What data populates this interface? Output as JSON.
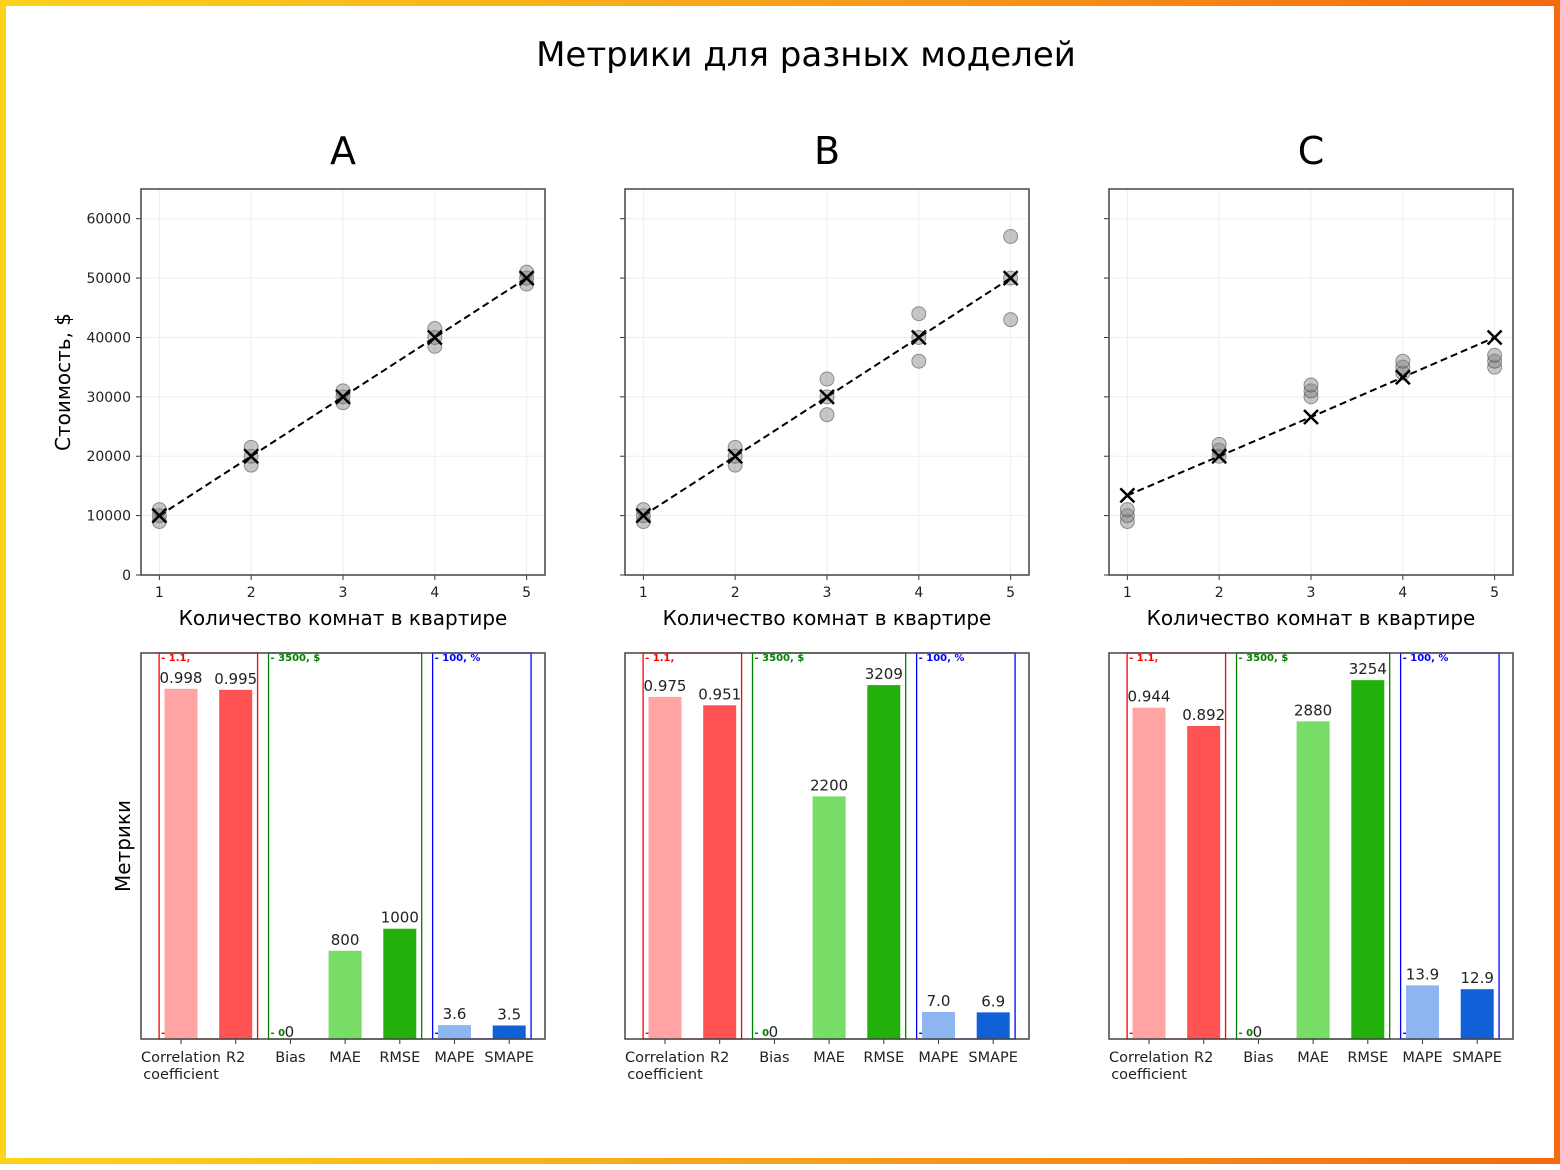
{
  "title": "Метрики для разных моделей",
  "scatter_ylabel": "Стоимость, $",
  "bars_ylabel": "Метрики",
  "xlabel": "Количество комнат в квартире",
  "colors": {
    "corr": "#ffa3a3",
    "r2": "#ff5252",
    "bias": "#b0e0b0",
    "mae": "#77dd66",
    "rmse": "#22b10a",
    "mape": "#8cb5f2",
    "smape": "#1060d8",
    "group_red": "#ff0000",
    "group_green": "#008000",
    "group_blue": "#0000ff"
  },
  "metric_groups": [
    {
      "name": "red",
      "max_label": "1.1,",
      "min_label": "0",
      "max": 1.1
    },
    {
      "name": "green",
      "max_label": "3500, $",
      "min_label": "0",
      "max": 3500
    },
    {
      "name": "blue",
      "max_label": "100, %",
      "min_label": "0",
      "max": 100
    }
  ],
  "chart_data": [
    {
      "type": "scatter",
      "panel": "A",
      "title": "A",
      "xlabel": "Количество комнат в квартире",
      "ylabel": "Стоимость, $",
      "xlim": [
        0.8,
        5.2
      ],
      "ylim": [
        0,
        65000
      ],
      "xticks": [
        1,
        2,
        3,
        4,
        5
      ],
      "yticks": [
        0,
        10000,
        20000,
        30000,
        40000,
        50000,
        60000
      ],
      "grid": true,
      "actual": [
        [
          1,
          9000
        ],
        [
          1,
          10000
        ],
        [
          1,
          11000
        ],
        [
          2,
          18500
        ],
        [
          2,
          20000
        ],
        [
          2,
          21500
        ],
        [
          3,
          29000
        ],
        [
          3,
          30000
        ],
        [
          3,
          31000
        ],
        [
          4,
          38500
        ],
        [
          4,
          40000
        ],
        [
          4,
          41500
        ],
        [
          5,
          49000
        ],
        [
          5,
          50000
        ],
        [
          5,
          51000
        ]
      ],
      "predicted": [
        [
          1,
          10000
        ],
        [
          2,
          20000
        ],
        [
          3,
          30000
        ],
        [
          4,
          40000
        ],
        [
          5,
          50000
        ]
      ]
    },
    {
      "type": "scatter",
      "panel": "B",
      "title": "B",
      "xlabel": "Количество комнат в квартире",
      "xlim": [
        0.8,
        5.2
      ],
      "ylim": [
        0,
        65000
      ],
      "xticks": [
        1,
        2,
        3,
        4,
        5
      ],
      "yticks": [
        0,
        10000,
        20000,
        30000,
        40000,
        50000,
        60000
      ],
      "grid": true,
      "actual": [
        [
          1,
          9000
        ],
        [
          1,
          10000
        ],
        [
          1,
          11000
        ],
        [
          2,
          18500
        ],
        [
          2,
          20000
        ],
        [
          2,
          21500
        ],
        [
          3,
          27000
        ],
        [
          3,
          30000
        ],
        [
          3,
          33000
        ],
        [
          4,
          36000
        ],
        [
          4,
          40000
        ],
        [
          4,
          44000
        ],
        [
          5,
          43000
        ],
        [
          5,
          50000
        ],
        [
          5,
          57000
        ]
      ],
      "predicted": [
        [
          1,
          10000
        ],
        [
          2,
          20000
        ],
        [
          3,
          30000
        ],
        [
          4,
          40000
        ],
        [
          5,
          50000
        ]
      ]
    },
    {
      "type": "scatter",
      "panel": "C",
      "title": "C",
      "xlabel": "Количество комнат в квартире",
      "xlim": [
        0.8,
        5.2
      ],
      "ylim": [
        0,
        65000
      ],
      "xticks": [
        1,
        2,
        3,
        4,
        5
      ],
      "yticks": [
        0,
        10000,
        20000,
        30000,
        40000,
        50000,
        60000
      ],
      "grid": true,
      "actual": [
        [
          1,
          9000
        ],
        [
          1,
          10000
        ],
        [
          1,
          11000
        ],
        [
          2,
          20000
        ],
        [
          2,
          21000
        ],
        [
          2,
          22000
        ],
        [
          3,
          30000
        ],
        [
          3,
          31000
        ],
        [
          3,
          32000
        ],
        [
          4,
          34000
        ],
        [
          4,
          35000
        ],
        [
          4,
          36000
        ],
        [
          5,
          35000
        ],
        [
          5,
          36000
        ],
        [
          5,
          37000
        ]
      ],
      "predicted": [
        [
          1,
          13400
        ],
        [
          2,
          20000
        ],
        [
          3,
          26600
        ],
        [
          4,
          33300
        ],
        [
          5,
          40000
        ]
      ]
    },
    {
      "type": "bar",
      "panel": "A",
      "ylabel": "Метрики",
      "categories": [
        "Correlation\ncoefficient",
        "R2",
        "Bias",
        "MAE",
        "RMSE",
        "MAPE",
        "SMAPE"
      ],
      "values": [
        0.998,
        0.995,
        0,
        800,
        1000,
        3.6,
        3.5
      ],
      "labels": [
        "0.998",
        "0.995",
        "0",
        "800",
        "1000",
        "3.6",
        "3.5"
      ]
    },
    {
      "type": "bar",
      "panel": "B",
      "categories": [
        "Correlation\ncoefficient",
        "R2",
        "Bias",
        "MAE",
        "RMSE",
        "MAPE",
        "SMAPE"
      ],
      "values": [
        0.975,
        0.951,
        0,
        2200,
        3209,
        7.0,
        6.9
      ],
      "labels": [
        "0.975",
        "0.951",
        "0",
        "2200",
        "3209",
        "7.0",
        "6.9"
      ]
    },
    {
      "type": "bar",
      "panel": "C",
      "categories": [
        "Correlation\ncoefficient",
        "R2",
        "Bias",
        "MAE",
        "RMSE",
        "MAPE",
        "SMAPE"
      ],
      "values": [
        0.944,
        0.892,
        0,
        2880,
        3254,
        13.9,
        12.9
      ],
      "labels": [
        "0.944",
        "0.892",
        "0",
        "2880",
        "3254",
        "13.9",
        "12.9"
      ]
    }
  ]
}
